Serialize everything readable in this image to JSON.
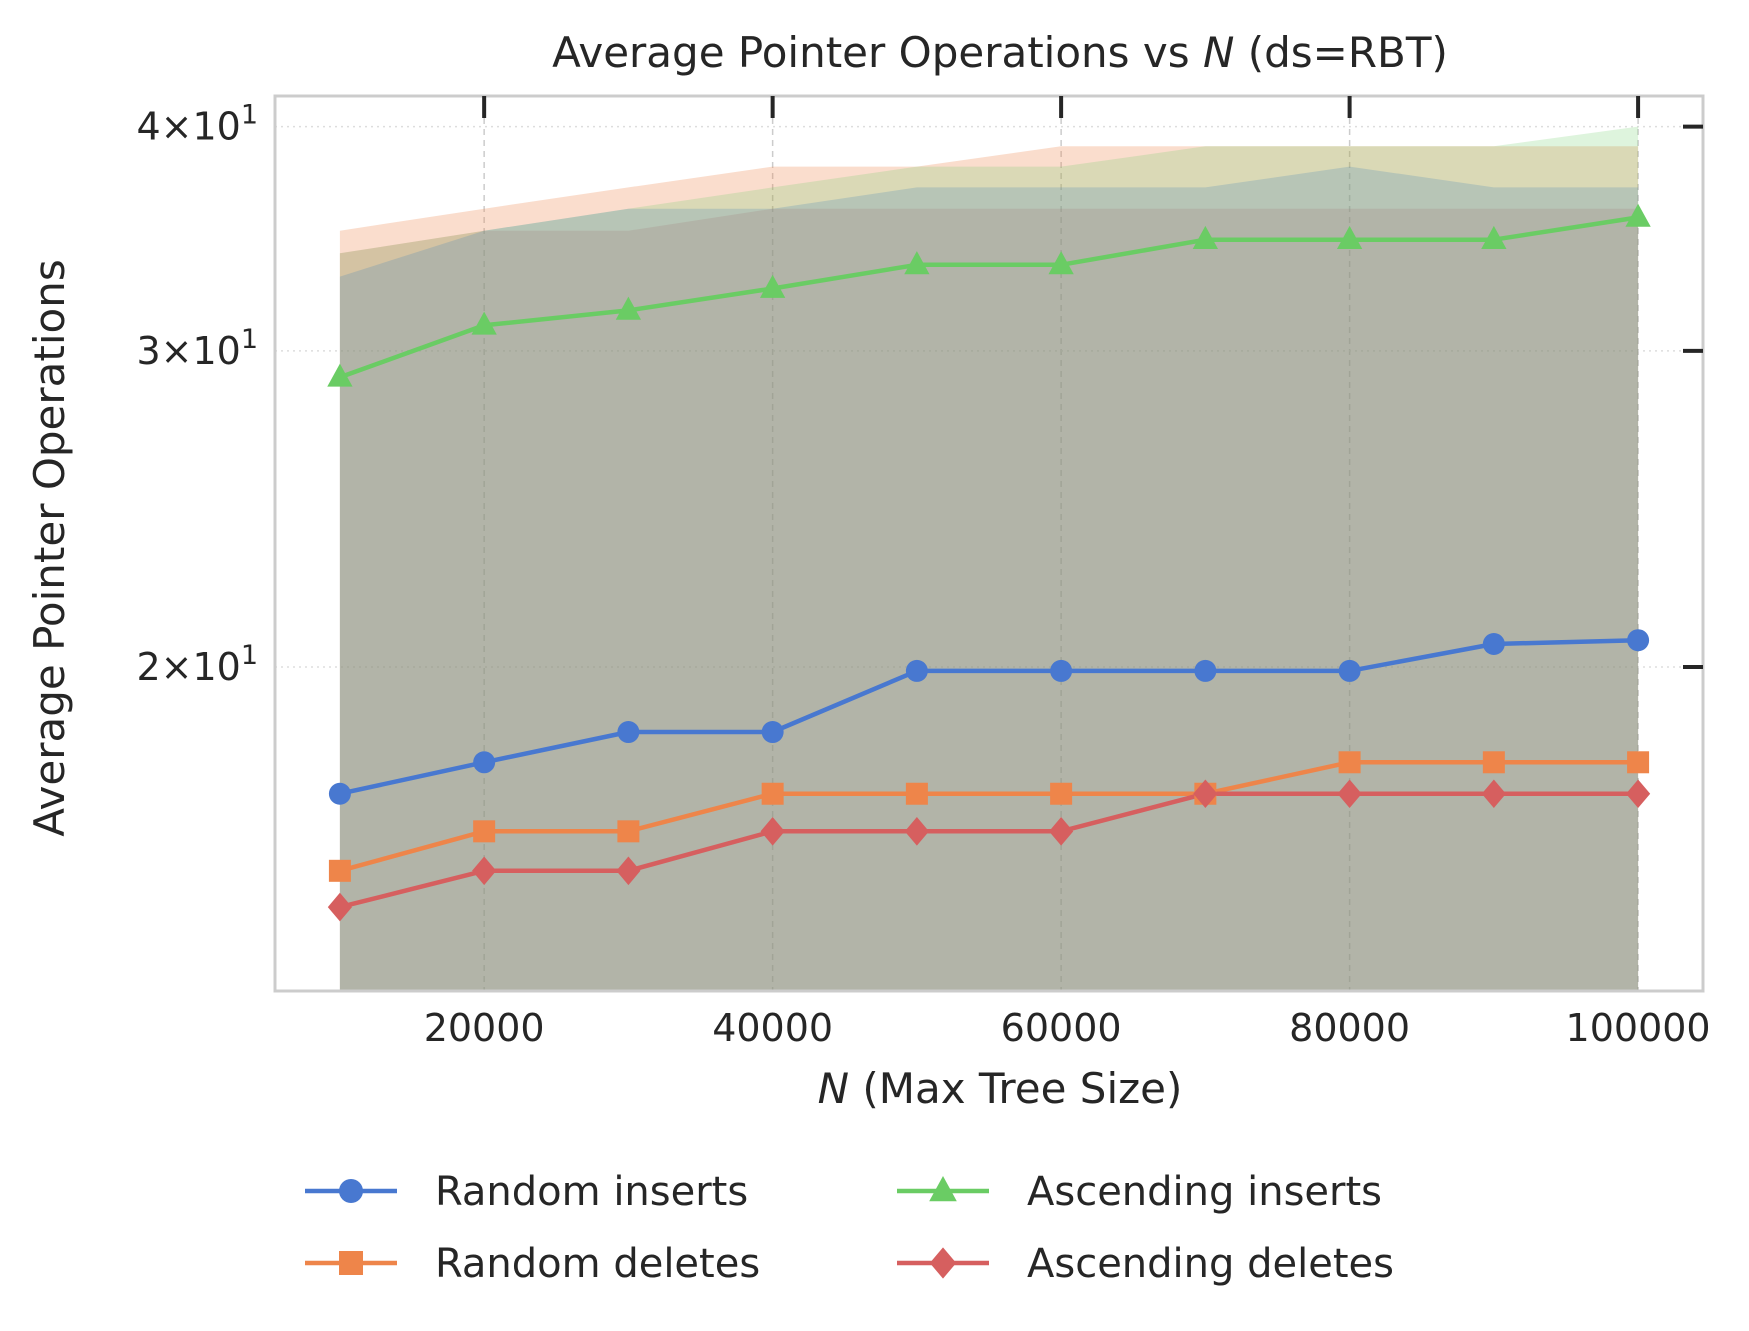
{
  "chart_data": {
    "type": "line",
    "title_prefix": "Average Pointer Operations vs ",
    "title_var": "N",
    "title_suffix": " (ds=RBT)",
    "xlabel_var": "N",
    "xlabel_rest": " (Max Tree Size)",
    "ylabel": "Average Pointer Operations",
    "y_scale": "log",
    "grid": true,
    "legend_position": "below",
    "x": [
      10000,
      20000,
      30000,
      40000,
      50000,
      60000,
      70000,
      80000,
      90000,
      100000
    ],
    "x_ticks": [
      {
        "value": 20000,
        "label": "20000"
      },
      {
        "value": 40000,
        "label": "40000"
      },
      {
        "value": 60000,
        "label": "60000"
      },
      {
        "value": 80000,
        "label": "80000"
      },
      {
        "value": 100000,
        "label": "100000"
      }
    ],
    "y_ticks": [
      {
        "value": 20,
        "mantissa": "2",
        "base": "10",
        "exp": "1"
      },
      {
        "value": 30,
        "mantissa": "3",
        "base": "10",
        "exp": "1"
      },
      {
        "value": 40,
        "mantissa": "4",
        "base": "10",
        "exp": "1"
      }
    ],
    "series": [
      {
        "name": "Random inserts",
        "color": "#4878d0",
        "marker": "circle",
        "values": [
          17,
          17.7,
          18.4,
          18.4,
          19.9,
          19.9,
          19.9,
          19.9,
          20.6,
          20.7
        ],
        "band_low": [
          1,
          1,
          1,
          1,
          1,
          1,
          1,
          1,
          1,
          1
        ],
        "band_high": [
          33,
          35,
          36,
          36,
          37,
          37,
          37,
          38,
          37,
          37
        ]
      },
      {
        "name": "Random deletes",
        "color": "#ee854a",
        "marker": "square",
        "values": [
          15.4,
          16.2,
          16.2,
          17,
          17,
          17,
          17,
          17.7,
          17.7,
          17.7
        ],
        "band_low": [
          1,
          1,
          1,
          1,
          1,
          1,
          1,
          1,
          1,
          1
        ],
        "band_high": [
          35,
          36,
          37,
          38,
          38,
          39,
          39,
          39,
          39,
          39
        ]
      },
      {
        "name": "Ascending inserts",
        "color": "#6acc64",
        "marker": "triangle",
        "values": [
          29,
          31,
          31.6,
          32.5,
          33.5,
          33.5,
          34.6,
          34.6,
          34.6,
          35.6
        ],
        "band_low": [
          1,
          1,
          1,
          1,
          1,
          1,
          1,
          1,
          1,
          1
        ],
        "band_high": [
          34,
          35,
          36,
          37,
          38,
          38,
          39,
          39,
          39,
          40
        ]
      },
      {
        "name": "Ascending deletes",
        "color": "#d65f5f",
        "marker": "diamond",
        "values": [
          14.7,
          15.4,
          15.4,
          16.2,
          16.2,
          16.2,
          17,
          17,
          17,
          17
        ],
        "band_low": [
          1,
          1,
          1,
          1,
          1,
          1,
          1,
          1,
          1,
          1
        ],
        "band_high": [
          34,
          35,
          35,
          36,
          36,
          36,
          36,
          36,
          36,
          36
        ]
      }
    ]
  }
}
